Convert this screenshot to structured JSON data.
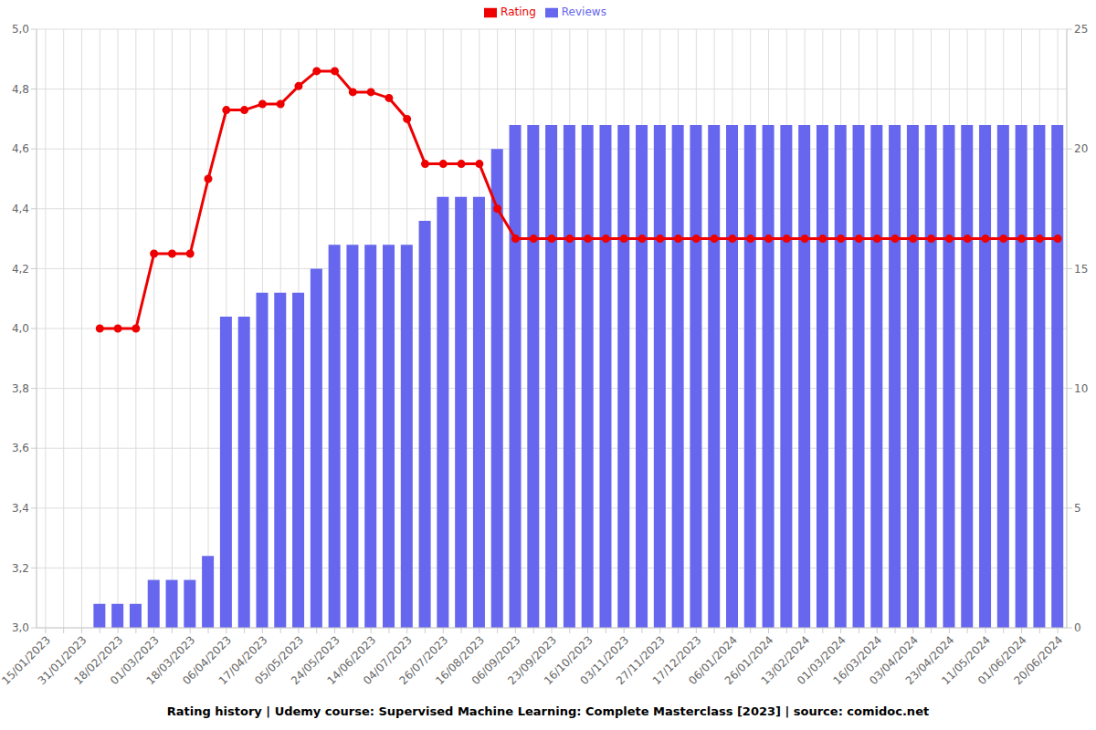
{
  "chart_data": {
    "type": "combo",
    "title": "Rating history | Udemy course: Supervised Machine Learning: Complete Masterclass [2023] | source: comidoc.net",
    "categories": [
      "15/01/2023",
      null,
      "31/01/2023",
      null,
      "18/02/2023",
      null,
      "01/03/2023",
      null,
      "18/03/2023",
      null,
      "06/04/2023",
      null,
      "17/04/2023",
      null,
      "05/05/2023",
      null,
      "24/05/2023",
      null,
      "14/06/2023",
      null,
      "04/07/2023",
      null,
      "26/07/2023",
      null,
      "16/08/2023",
      null,
      "06/09/2023",
      null,
      "23/09/2023",
      null,
      "16/10/2023",
      null,
      "03/11/2023",
      null,
      "27/11/2023",
      null,
      "17/12/2023",
      null,
      "06/01/2024",
      null,
      "26/01/2024",
      null,
      "13/02/2024",
      null,
      "01/03/2024",
      null,
      "16/03/2024",
      null,
      "03/04/2024",
      null,
      "23/04/2024",
      null,
      "11/05/2024",
      null,
      "01/06/2024",
      null,
      "20/06/2024"
    ],
    "series": [
      {
        "name": "Rating",
        "type": "line",
        "color": "#ee0000",
        "marker": "circle",
        "values": [
          null,
          null,
          null,
          4.0,
          4.0,
          4.0,
          4.25,
          4.25,
          4.25,
          4.5,
          4.73,
          4.73,
          4.75,
          4.75,
          4.81,
          4.86,
          4.86,
          4.79,
          4.79,
          4.77,
          4.7,
          4.55,
          4.55,
          4.55,
          4.55,
          4.4,
          4.3,
          4.3,
          4.3,
          4.3,
          4.3,
          4.3,
          4.3,
          4.3,
          4.3,
          4.3,
          4.3,
          4.3,
          4.3,
          4.3,
          4.3,
          4.3,
          4.3,
          4.3,
          4.3,
          4.3,
          4.3,
          4.3,
          4.3,
          4.3,
          4.3,
          4.3,
          4.3,
          4.3,
          4.3,
          4.3,
          4.3
        ]
      },
      {
        "name": "Reviews",
        "type": "bar",
        "axis": "y2",
        "color": "#6666ee",
        "values": [
          null,
          null,
          null,
          1,
          1,
          1,
          2,
          2,
          2,
          3,
          13,
          13,
          14,
          14,
          14,
          15,
          16,
          16,
          16,
          16,
          16,
          17,
          18,
          18,
          18,
          20,
          21,
          21,
          21,
          21,
          21,
          21,
          21,
          21,
          21,
          21,
          21,
          21,
          21,
          21,
          21,
          21,
          21,
          21,
          21,
          21,
          21,
          21,
          21,
          21,
          21,
          21,
          21,
          21,
          21,
          21,
          21
        ]
      }
    ],
    "ylim": [
      3,
      5
    ],
    "yticks": [
      {
        "value": 3,
        "label": "3,0"
      },
      {
        "value": 3.2,
        "label": "3,2"
      },
      {
        "value": 3.4,
        "label": "3,4"
      },
      {
        "value": 3.6,
        "label": "3,6"
      },
      {
        "value": 3.8,
        "label": "3,8"
      },
      {
        "value": 4,
        "label": "4,0"
      },
      {
        "value": 4.2,
        "label": "4,2"
      },
      {
        "value": 4.4,
        "label": "4,4"
      },
      {
        "value": 4.6,
        "label": "4,6"
      },
      {
        "value": 4.8,
        "label": "4,8"
      },
      {
        "value": 5,
        "label": "5,0"
      }
    ],
    "y2lim": [
      0,
      25
    ],
    "y2ticks": [
      0,
      5,
      10,
      15,
      20,
      25
    ],
    "grid": true,
    "legend": "top"
  }
}
